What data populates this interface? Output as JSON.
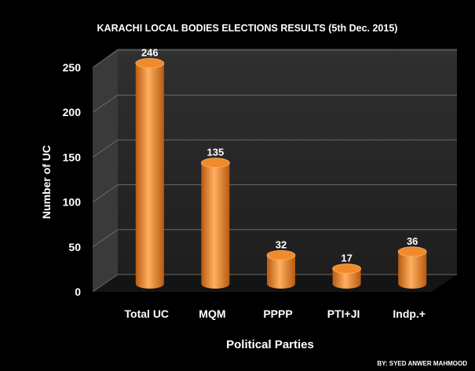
{
  "chart_data": {
    "type": "bar",
    "title": "KARACHI LOCAL BODIES ELECTIONS  RESULTS  (5th Dec.  2015)",
    "xlabel": "Political Parties",
    "ylabel": "Number  of  UC",
    "categories": [
      "Total UC",
      "MQM",
      "PPPP",
      "PTI+JI",
      "Indp.+"
    ],
    "values": [
      246,
      135,
      32,
      17,
      36
    ],
    "data_labels": [
      "246",
      "135",
      "32",
      "17",
      "36"
    ],
    "ylim": [
      0,
      250
    ],
    "yticks": [
      "0",
      "50",
      "100",
      "150",
      "200",
      "250"
    ],
    "grid": true,
    "legend": "none",
    "credit": "BY: SYED ANWER MAHMOOD",
    "colors": {
      "background": "#000000",
      "plot_wall": "#2a2a2a",
      "plot_side": "#3a3a3a",
      "floor": "#111111",
      "gridline": "#6a6a6a",
      "bar_light": "#ffb060",
      "bar_mid": "#f08a2a",
      "bar_dark": "#b85a10",
      "text": "#ffffff"
    }
  }
}
